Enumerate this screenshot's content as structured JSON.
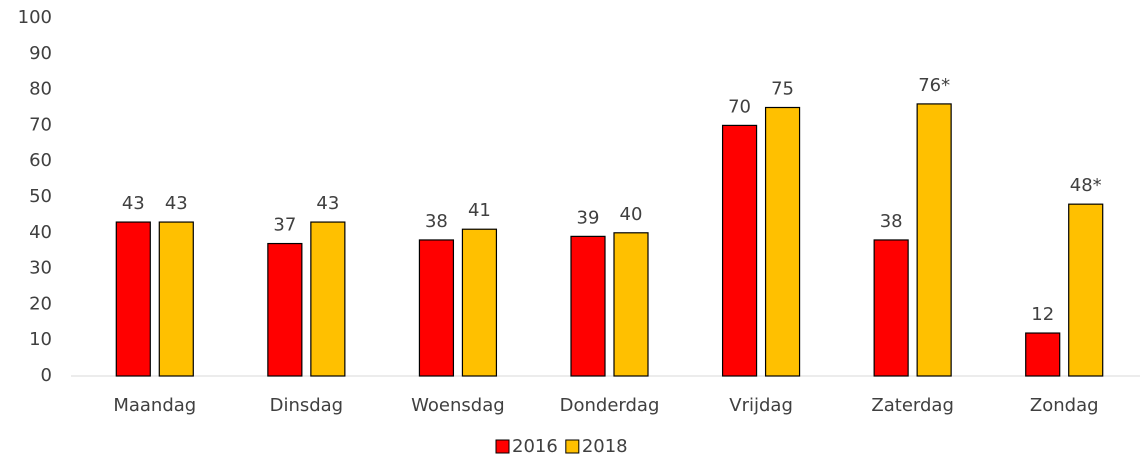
{
  "chart_data": {
    "type": "bar",
    "categories": [
      "Maandag",
      "Dinsdag",
      "Woensdag",
      "Donderdag",
      "Vrijdag",
      "Zaterdag",
      "Zondag"
    ],
    "series": [
      {
        "name": "2016",
        "color": "#ff0000",
        "values": [
          43,
          37,
          38,
          39,
          70,
          38,
          12
        ]
      },
      {
        "name": "2018",
        "color": "#ffc000",
        "values": [
          43,
          43,
          41,
          40,
          75,
          76,
          48
        ],
        "value_labels": [
          "43",
          "43",
          "41",
          "40",
          "75",
          "76*",
          "48*"
        ]
      }
    ],
    "ylim": [
      0,
      100
    ],
    "yticks": [
      0,
      10,
      20,
      30,
      40,
      50,
      60,
      70,
      80,
      90,
      100
    ],
    "grid": false,
    "legend": "bottom"
  }
}
